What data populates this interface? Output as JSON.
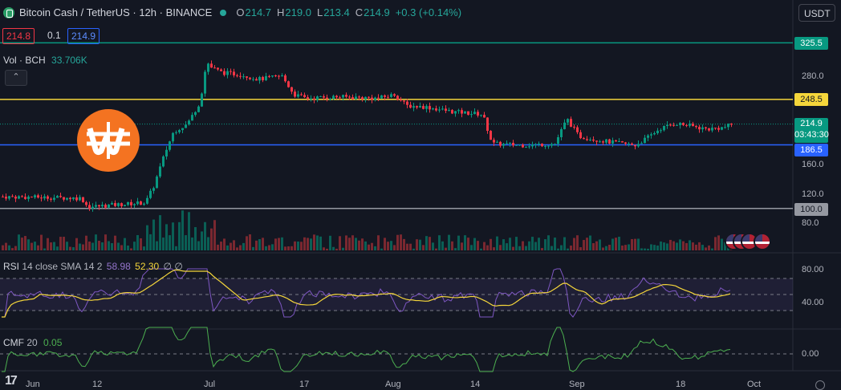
{
  "header": {
    "symbol_title": "Bitcoin Cash / TetherUS · 12h · BINANCE",
    "open_label": "O",
    "open": "214.7",
    "high_label": "H",
    "high": "219.0",
    "low_label": "L",
    "low": "213.4",
    "close_label": "C",
    "close": "214.9",
    "change": "+0.3 (+0.14%)"
  },
  "price_boxes": {
    "bid": "214.8",
    "spread": "0.1",
    "ask": "214.9"
  },
  "volume": {
    "label": "Vol · BCH",
    "value": "33.706K"
  },
  "currency_selector": "USDT",
  "collapse_glyph": "⌃",
  "price_axis": {
    "ticks": [
      "280.0",
      "160.0",
      "120.0",
      "80.0"
    ],
    "levels": [
      {
        "value": "325.5",
        "color": "#089981"
      },
      {
        "value": "248.5",
        "color": "#f5d63b"
      },
      {
        "value": "186.5",
        "color": "#2962ff"
      },
      {
        "value": "100.0",
        "color": "#9598a1"
      }
    ],
    "current_price": "214.9",
    "countdown": "03:43:30",
    "current_color": "#089981"
  },
  "rsi": {
    "name": "RSI",
    "params": "14 close SMA 14 2",
    "value": "58.98",
    "sma": "52.30",
    "extra1": "∅",
    "extra2": "∅",
    "ticks": [
      "80.00",
      "40.00"
    ]
  },
  "cmf": {
    "name": "CMF",
    "params": "20",
    "value": "0.05",
    "ticks": [
      "0.00"
    ]
  },
  "time_axis": [
    "Jun",
    "12",
    "Jul",
    "17",
    "Aug",
    "14",
    "Sep",
    "18",
    "Oct"
  ],
  "colors": {
    "up": "#089981",
    "down": "#f23645",
    "background": "#131722",
    "rsi_line": "#7e57c2",
    "rsi_sma": "#f5d63b",
    "cmf_line": "#4caf50"
  },
  "icons": [
    "bitcoin-cash-logo",
    "market-status-dot",
    "eye-icon",
    "chevron-up-icon",
    "us-flag-icon",
    "settings-icon"
  ]
}
